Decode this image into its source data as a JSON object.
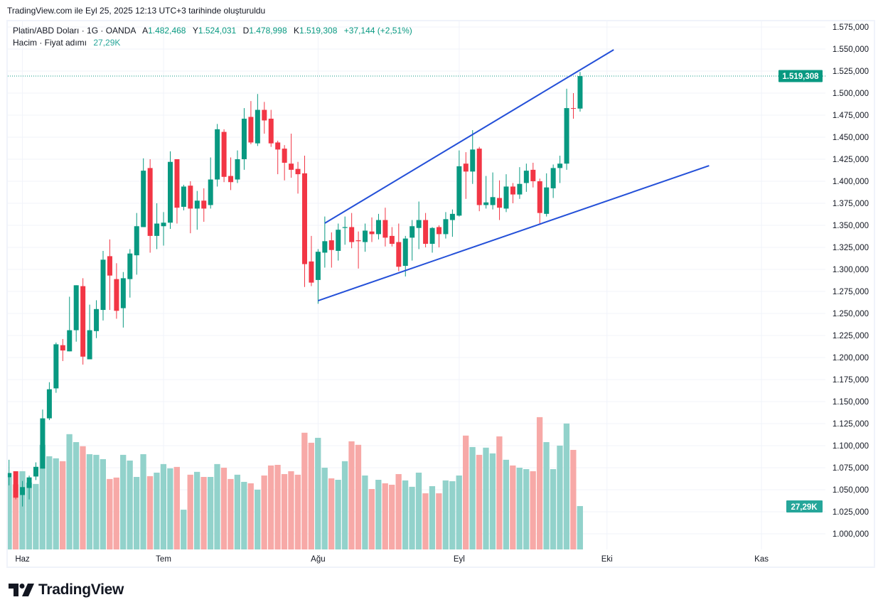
{
  "header": {
    "created": "TradingView.com ile Eyl 25, 2025 12:13 UTC+3 tarihinde oluşturuldu"
  },
  "legend": {
    "symbol": "Platin/ABD Doları · 1G · OANDA",
    "open_label": "A",
    "open": "1.482,468",
    "high_label": "Y",
    "high": "1.524,031",
    "low_label": "D",
    "low": "1.478,998",
    "close_label": "K",
    "close": "1.519,308",
    "change": "+37,144 (+2,51%)",
    "volume_label": "Hacim · Fiyat adımı",
    "volume": "27,29K"
  },
  "price_axis": {
    "current_price_label": "1.519,308",
    "current_volume_label": "27,29K"
  },
  "logo": {
    "text": "TradingView"
  },
  "colors": {
    "up": "#089981",
    "down": "#f23645",
    "vol_up": "#92d2cb",
    "vol_down": "#f7a9a7",
    "trendline": "#2450d8",
    "grid": "#f0f3fa"
  },
  "chart_data": {
    "type": "candlestick",
    "title": "Platin/ABD Doları · 1G · OANDA",
    "ylabel": "Price (USD)",
    "ylim": [
      1000,
      1575
    ],
    "y_ticks": [
      {
        "value": 1575,
        "label": "1.575,000"
      },
      {
        "value": 1550,
        "label": "1.550,000"
      },
      {
        "value": 1525,
        "label": "1.525,000"
      },
      {
        "value": 1500,
        "label": "1.500,000"
      },
      {
        "value": 1475,
        "label": "1.475,000"
      },
      {
        "value": 1450,
        "label": "1.450,000"
      },
      {
        "value": 1425,
        "label": "1.425,000"
      },
      {
        "value": 1400,
        "label": "1.400,000"
      },
      {
        "value": 1375,
        "label": "1.375,000"
      },
      {
        "value": 1350,
        "label": "1.350,000"
      },
      {
        "value": 1325,
        "label": "1.325,000"
      },
      {
        "value": 1300,
        "label": "1.300,000"
      },
      {
        "value": 1275,
        "label": "1.275,000"
      },
      {
        "value": 1250,
        "label": "1.250,000"
      },
      {
        "value": 1225,
        "label": "1.225,000"
      },
      {
        "value": 1200,
        "label": "1.200,000"
      },
      {
        "value": 1175,
        "label": "1.175,000"
      },
      {
        "value": 1150,
        "label": "1.150,000"
      },
      {
        "value": 1125,
        "label": "1.125,000"
      },
      {
        "value": 1100,
        "label": "1.100,000"
      },
      {
        "value": 1075,
        "label": "1.075,000"
      },
      {
        "value": 1050,
        "label": "1.050,000"
      },
      {
        "value": 1025,
        "label": "1.025,000"
      },
      {
        "value": 1000,
        "label": "1.000,000"
      }
    ],
    "x_ticks": [
      {
        "index": 2,
        "label": "Haz"
      },
      {
        "index": 23,
        "label": "Tem"
      },
      {
        "index": 46,
        "label": "Ağu"
      },
      {
        "index": 67,
        "label": "Eyl"
      },
      {
        "index": 89,
        "label": "Eki"
      },
      {
        "index": 112,
        "label": "Kas"
      }
    ],
    "ohlc": [
      [
        1064,
        1084,
        1055,
        1069
      ],
      [
        1071,
        1071,
        1039,
        1041
      ],
      [
        1044,
        1060,
        1031,
        1053
      ],
      [
        1052,
        1066,
        1039,
        1064
      ],
      [
        1065,
        1081,
        1061,
        1076
      ],
      [
        1074,
        1141,
        1074,
        1131
      ],
      [
        1131,
        1172,
        1129,
        1164
      ],
      [
        1165,
        1217,
        1160,
        1215
      ],
      [
        1214,
        1221,
        1196,
        1208
      ],
      [
        1207,
        1269,
        1207,
        1231
      ],
      [
        1231,
        1282,
        1218,
        1282
      ],
      [
        1281,
        1290,
        1192,
        1201
      ],
      [
        1198,
        1260,
        1198,
        1231
      ],
      [
        1230,
        1265,
        1222,
        1255
      ],
      [
        1254,
        1321,
        1242,
        1311
      ],
      [
        1315,
        1334,
        1254,
        1293
      ],
      [
        1289,
        1307,
        1244,
        1253
      ],
      [
        1256,
        1297,
        1234,
        1290
      ],
      [
        1289,
        1323,
        1268,
        1318
      ],
      [
        1316,
        1364,
        1294,
        1349
      ],
      [
        1348,
        1426,
        1348,
        1412
      ],
      [
        1415,
        1425,
        1319,
        1338
      ],
      [
        1338,
        1375,
        1323,
        1352
      ],
      [
        1349,
        1365,
        1327,
        1353
      ],
      [
        1353,
        1434,
        1346,
        1422
      ],
      [
        1425,
        1425,
        1352,
        1370
      ],
      [
        1371,
        1396,
        1367,
        1394
      ],
      [
        1395,
        1400,
        1341,
        1369
      ],
      [
        1369,
        1389,
        1345,
        1378
      ],
      [
        1378,
        1392,
        1354,
        1369
      ],
      [
        1373,
        1427,
        1369,
        1402
      ],
      [
        1402,
        1465,
        1394,
        1459
      ],
      [
        1456,
        1459,
        1399,
        1405
      ],
      [
        1406,
        1427,
        1390,
        1399
      ],
      [
        1402,
        1435,
        1398,
        1425
      ],
      [
        1425,
        1483,
        1413,
        1471
      ],
      [
        1473,
        1491,
        1442,
        1444
      ],
      [
        1443,
        1499,
        1440,
        1481
      ],
      [
        1481,
        1490,
        1454,
        1469
      ],
      [
        1471,
        1481,
        1439,
        1443
      ],
      [
        1444,
        1446,
        1408,
        1436
      ],
      [
        1437,
        1441,
        1401,
        1421
      ],
      [
        1420,
        1454,
        1404,
        1413
      ],
      [
        1414,
        1422,
        1386,
        1408
      ],
      [
        1409,
        1429,
        1280,
        1306
      ],
      [
        1309,
        1338,
        1281,
        1285
      ],
      [
        1288,
        1323,
        1261,
        1320
      ],
      [
        1319,
        1360,
        1302,
        1332
      ],
      [
        1333,
        1342,
        1302,
        1322
      ],
      [
        1321,
        1352,
        1310,
        1345
      ],
      [
        1347,
        1360,
        1328,
        1348
      ],
      [
        1348,
        1364,
        1324,
        1331
      ],
      [
        1333,
        1343,
        1301,
        1332
      ],
      [
        1331,
        1352,
        1320,
        1344
      ],
      [
        1343,
        1359,
        1331,
        1340
      ],
      [
        1340,
        1363,
        1334,
        1356
      ],
      [
        1356,
        1370,
        1326,
        1336
      ],
      [
        1338,
        1348,
        1326,
        1329
      ],
      [
        1331,
        1352,
        1298,
        1303
      ],
      [
        1304,
        1338,
        1292,
        1335
      ],
      [
        1336,
        1356,
        1310,
        1349
      ],
      [
        1347,
        1377,
        1323,
        1356
      ],
      [
        1356,
        1364,
        1325,
        1329
      ],
      [
        1329,
        1348,
        1319,
        1347
      ],
      [
        1348,
        1350,
        1325,
        1340
      ],
      [
        1340,
        1365,
        1335,
        1357
      ],
      [
        1356,
        1368,
        1337,
        1363
      ],
      [
        1361,
        1435,
        1360,
        1417
      ],
      [
        1420,
        1433,
        1380,
        1411
      ],
      [
        1411,
        1458,
        1397,
        1436
      ],
      [
        1437,
        1439,
        1366,
        1373
      ],
      [
        1373,
        1406,
        1369,
        1376
      ],
      [
        1373,
        1410,
        1368,
        1382
      ],
      [
        1381,
        1401,
        1356,
        1370
      ],
      [
        1369,
        1408,
        1365,
        1394
      ],
      [
        1394,
        1398,
        1375,
        1385
      ],
      [
        1385,
        1416,
        1380,
        1397
      ],
      [
        1398,
        1420,
        1388,
        1412
      ],
      [
        1413,
        1421,
        1393,
        1400
      ],
      [
        1400,
        1403,
        1351,
        1364
      ],
      [
        1363,
        1409,
        1360,
        1393
      ],
      [
        1392,
        1419,
        1381,
        1415
      ],
      [
        1415,
        1429,
        1398,
        1420
      ],
      [
        1420,
        1505,
        1413,
        1483
      ],
      [
        1483,
        1500,
        1471,
        1482.164
      ],
      [
        1482.468,
        1524.031,
        1478.998,
        1519.308
      ]
    ],
    "volume_unit": "K",
    "volume": [
      45.2,
      40.9,
      49.2,
      42.0,
      41.2,
      65.8,
      58.6,
      57.3,
      55.5,
      72.5,
      67.5,
      64.9,
      59.9,
      59.5,
      56.8,
      44.3,
      45.2,
      59.5,
      55.9,
      45.6,
      59.9,
      46.1,
      48.3,
      53.7,
      51.0,
      51.9,
      25.0,
      47.0,
      48.8,
      45.6,
      45.6,
      53.7,
      51.4,
      44.3,
      47.0,
      42.5,
      41.6,
      37.6,
      46.5,
      52.8,
      53.2,
      47.4,
      49.2,
      47.0,
      73.4,
      67.1,
      70.2,
      51.4,
      44.7,
      43.8,
      55.5,
      68.0,
      65.8,
      46.5,
      38.0,
      43.8,
      41.6,
      40.7,
      47.4,
      43.4,
      39.4,
      48.3,
      35.3,
      39.8,
      35.3,
      43.4,
      42.9,
      46.5,
      71.6,
      64.4,
      59.5,
      64.0,
      60.4,
      71.1,
      56.4,
      52.8,
      51.4,
      50.5,
      49.2,
      83.2,
      67.5,
      50.5,
      65.3,
      79.2,
      62.6,
      27.29
    ],
    "last_price": 1519.308,
    "trendlines": [
      {
        "name": "upper-channel",
        "from": {
          "index": 47,
          "price": 1352.4
        },
        "to": {
          "index": 90,
          "price": 1549.2
        }
      },
      {
        "name": "lower-channel",
        "from": {
          "index": 46,
          "price": 1264.5
        },
        "to": {
          "index": 104.2,
          "price": 1417.7
        }
      }
    ]
  }
}
